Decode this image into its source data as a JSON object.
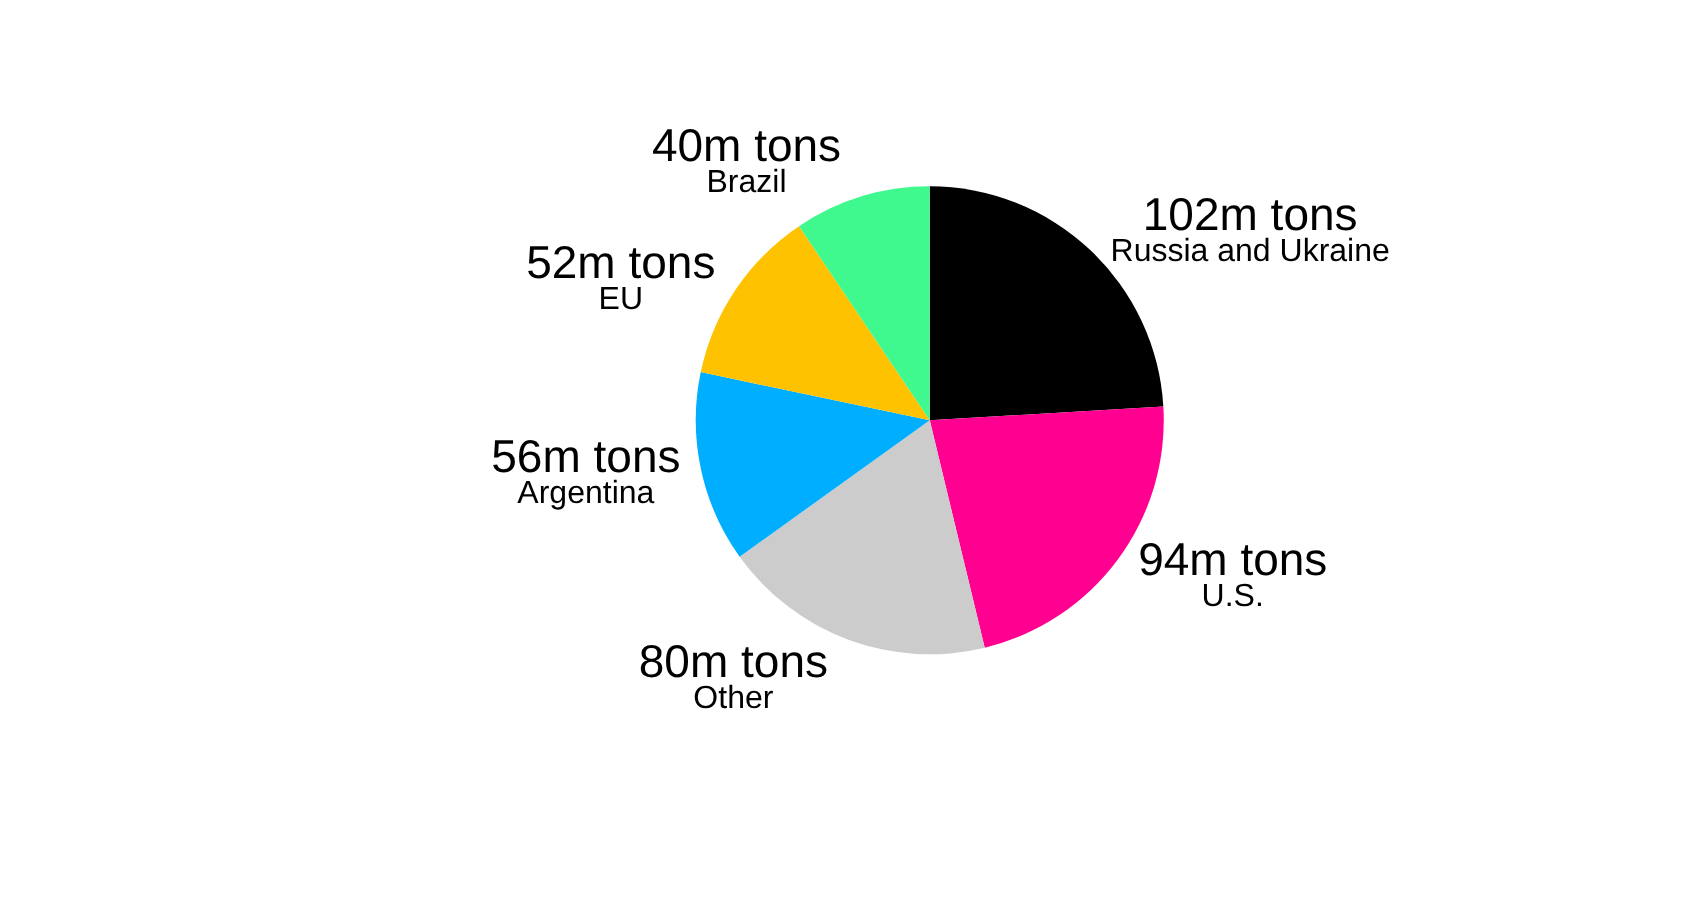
{
  "chart_data": {
    "type": "pie",
    "categories": [
      "Russia and Ukraine",
      "U.S.",
      "Other",
      "Argentina",
      "EU",
      "Brazil"
    ],
    "values": [
      102,
      94,
      80,
      56,
      52,
      40
    ],
    "colors": [
      "#000000",
      "#ff0090",
      "#cccccc",
      "#00aeff",
      "#ffc200",
      "#3ff88e"
    ],
    "value_labels": [
      "102m tons",
      "94m tons",
      "80m tons",
      "56m tons",
      "52m tons",
      "40m tons"
    ]
  }
}
